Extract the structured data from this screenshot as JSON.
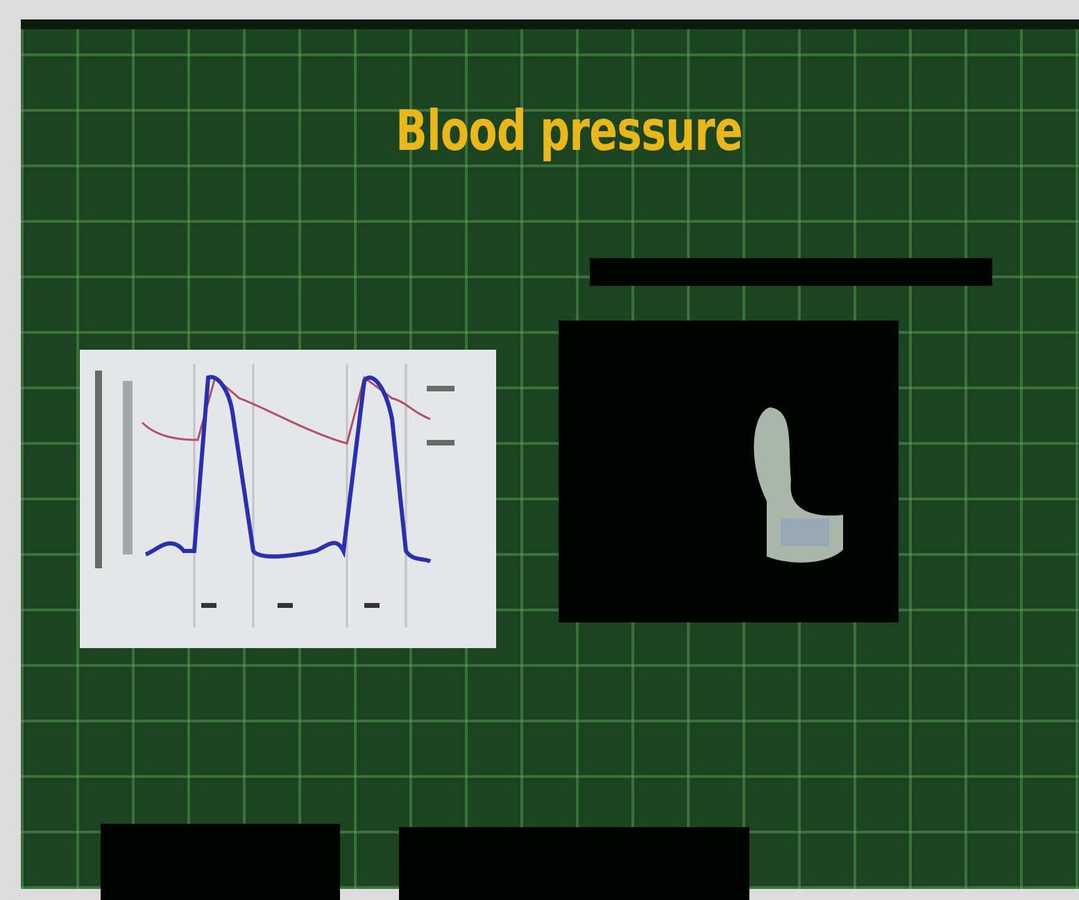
{
  "slide": {
    "title": "Blood pressure"
  }
}
